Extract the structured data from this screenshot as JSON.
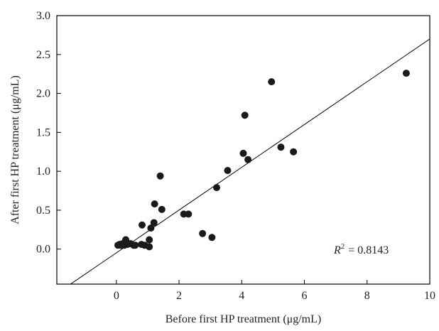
{
  "chart_data": {
    "type": "scatter",
    "xlabel": "Before first HP treatment (μg/mL)",
    "ylabel": "After first HP treatment (μg/mL)",
    "xlim": [
      -1.9,
      10
    ],
    "ylim": [
      -0.45,
      3.0
    ],
    "xticks": [
      "0",
      "2",
      "4",
      "6",
      "8",
      "10"
    ],
    "xtick_values": [
      0,
      2,
      4,
      6,
      8,
      10
    ],
    "yticks": [
      "0.0",
      "0.5",
      "1.0",
      "1.5",
      "2.0",
      "2.5",
      "3.0"
    ],
    "ytick_values": [
      0.0,
      0.5,
      1.0,
      1.5,
      2.0,
      2.5,
      3.0
    ],
    "grid": false,
    "marker_color": "#1a1a1a",
    "line_color": "#000000",
    "annotation": {
      "r_symbol": "R",
      "exponent": "2",
      "value": "= 0.8143"
    },
    "regression_line": {
      "x": [
        -1.9,
        10
      ],
      "y": [
        -0.57,
        2.7
      ]
    },
    "points": [
      {
        "x": 0.05,
        "y": 0.05
      },
      {
        "x": 0.1,
        "y": 0.06
      },
      {
        "x": 0.15,
        "y": 0.05
      },
      {
        "x": 0.2,
        "y": 0.07
      },
      {
        "x": 0.25,
        "y": 0.05
      },
      {
        "x": 0.3,
        "y": 0.12
      },
      {
        "x": 0.35,
        "y": 0.06
      },
      {
        "x": 0.45,
        "y": 0.07
      },
      {
        "x": 0.55,
        "y": 0.05
      },
      {
        "x": 0.6,
        "y": 0.05
      },
      {
        "x": 0.8,
        "y": 0.06
      },
      {
        "x": 0.82,
        "y": 0.31
      },
      {
        "x": 0.9,
        "y": 0.05
      },
      {
        "x": 1.05,
        "y": 0.03
      },
      {
        "x": 1.05,
        "y": 0.12
      },
      {
        "x": 1.1,
        "y": 0.27
      },
      {
        "x": 1.2,
        "y": 0.34
      },
      {
        "x": 1.22,
        "y": 0.58
      },
      {
        "x": 1.4,
        "y": 0.94
      },
      {
        "x": 1.45,
        "y": 0.51
      },
      {
        "x": 2.15,
        "y": 0.45
      },
      {
        "x": 2.3,
        "y": 0.45
      },
      {
        "x": 2.75,
        "y": 0.2
      },
      {
        "x": 3.05,
        "y": 0.15
      },
      {
        "x": 3.2,
        "y": 0.79
      },
      {
        "x": 3.55,
        "y": 1.01
      },
      {
        "x": 4.05,
        "y": 1.23
      },
      {
        "x": 4.1,
        "y": 1.72
      },
      {
        "x": 4.2,
        "y": 1.15
      },
      {
        "x": 4.95,
        "y": 2.15
      },
      {
        "x": 5.25,
        "y": 1.31
      },
      {
        "x": 5.65,
        "y": 1.25
      },
      {
        "x": 9.25,
        "y": 2.26
      }
    ]
  }
}
